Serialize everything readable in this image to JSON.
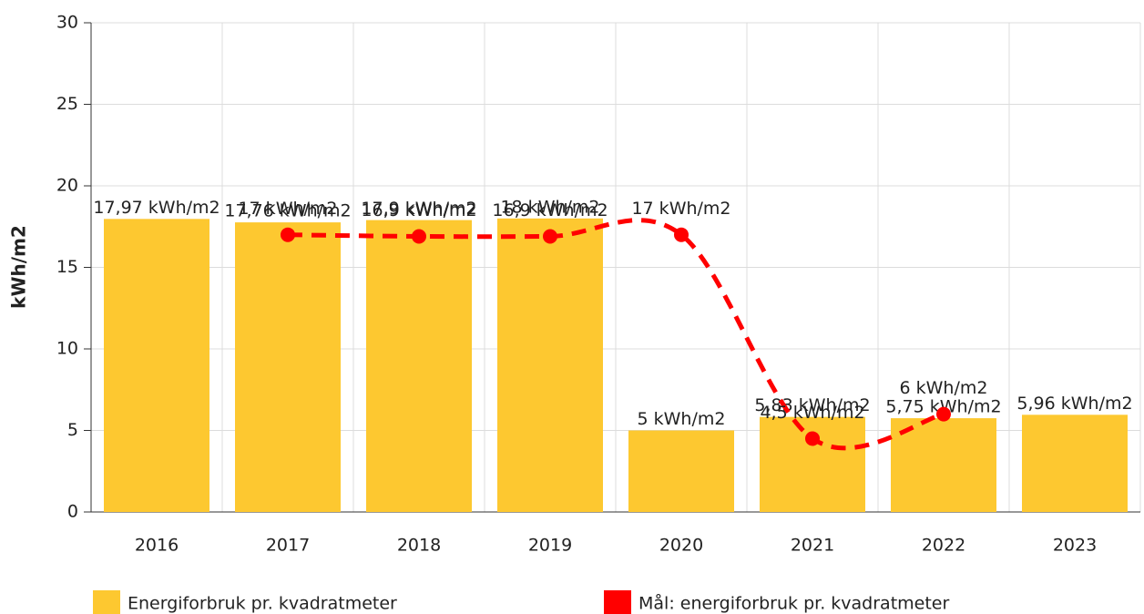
{
  "chart_data": {
    "type": "bar",
    "categories": [
      "2016",
      "2017",
      "2018",
      "2019",
      "2020",
      "2021",
      "2022",
      "2023"
    ],
    "y_label": "kWh/m2",
    "ylim": [
      0,
      30
    ],
    "yticks": [
      0,
      5,
      10,
      15,
      20,
      25,
      30
    ],
    "grid": true,
    "series": [
      {
        "name": "Energiforbruk pr. kvadratmeter",
        "type": "bar",
        "color": "#fdc830",
        "values": [
          17.97,
          17.76,
          17.9,
          18,
          5,
          5.83,
          5.75,
          5.96
        ],
        "value_labels": [
          "17,97 kWh/m2",
          "17,76 kWh/m2",
          "17,9 kWh/m2",
          "18 kWh/m2",
          "5 kWh/m2",
          "5,83 kWh/m2",
          "5,75 kWh/m2",
          "5,96 kWh/m2"
        ]
      },
      {
        "name": "Mål: energiforbruk pr. kvadratmeter",
        "type": "line",
        "color": "#ff0000",
        "values": [
          null,
          17,
          16.9,
          16.9,
          17,
          4.5,
          6,
          null
        ],
        "value_labels": [
          null,
          "17 kWh/m2",
          "16,9 kWh/m2",
          "16,9 kWh/m2",
          "17 kWh/m2",
          "4,5 kWh/m2",
          "6 kWh/m2",
          null
        ]
      }
    ]
  }
}
